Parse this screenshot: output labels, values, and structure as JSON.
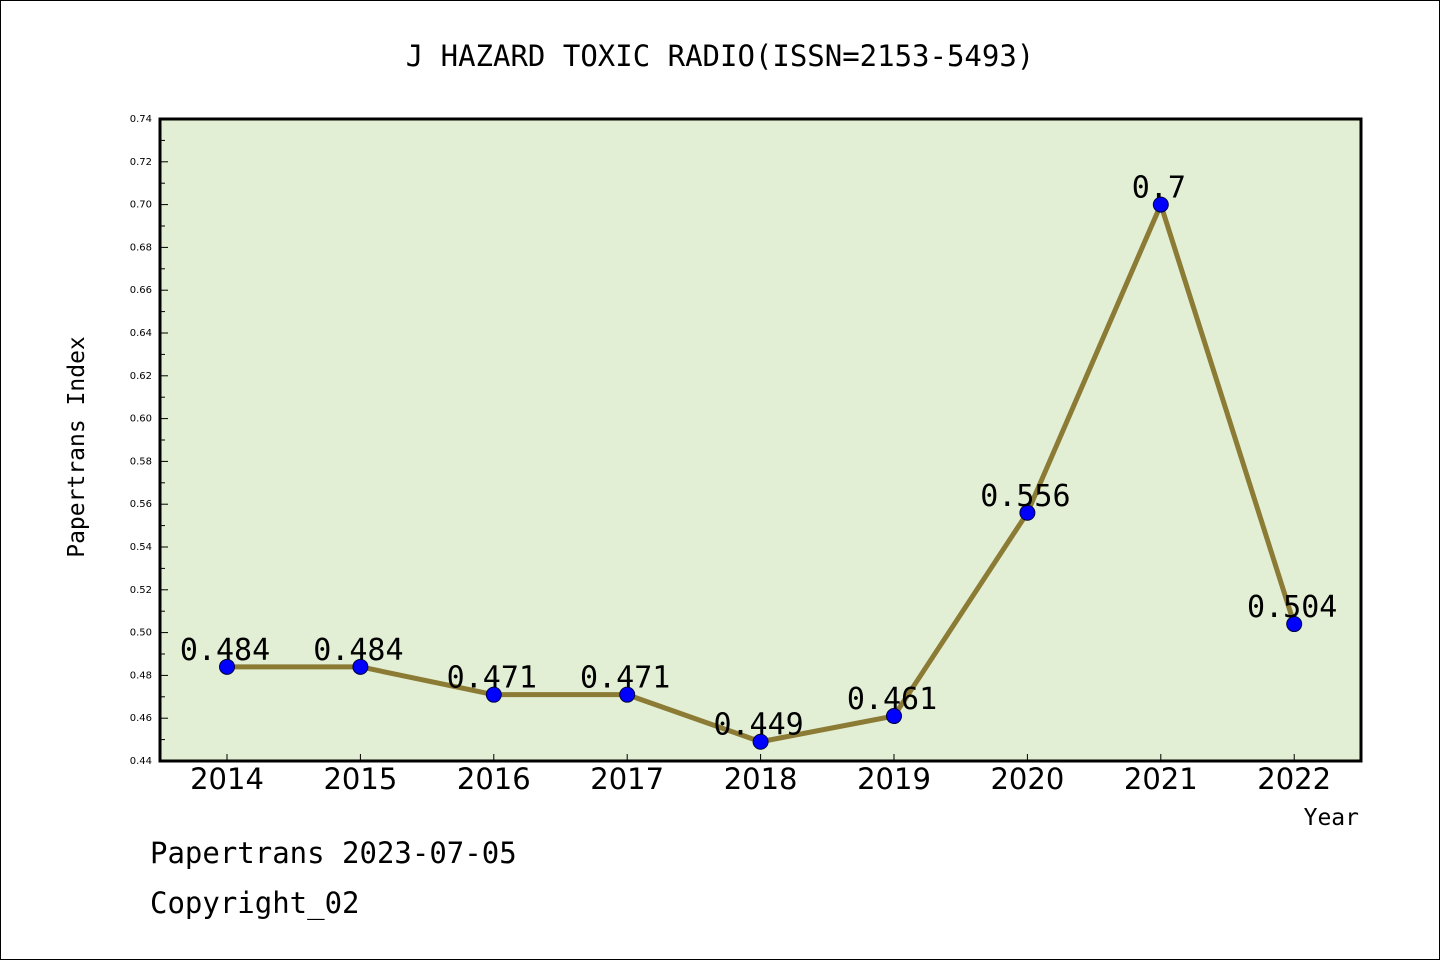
{
  "chart_data": {
    "type": "line",
    "title": "J HAZARD TOXIC RADIO(ISSN=2153-5493)",
    "xlabel": "Year",
    "ylabel": "Papertrans Index",
    "categories": [
      "2014",
      "2015",
      "2016",
      "2017",
      "2018",
      "2019",
      "2020",
      "2021",
      "2022"
    ],
    "series": [
      {
        "values": [
          0.484,
          0.484,
          0.471,
          0.471,
          0.449,
          0.461,
          0.556,
          0.7,
          0.504
        ],
        "labels": [
          "0.484",
          "0.484",
          "0.471",
          "0.471",
          "0.449",
          "0.461",
          "0.556",
          "0.7",
          "0.504"
        ]
      }
    ],
    "ylim": [
      0.44,
      0.74
    ],
    "yticks": [
      "0.44",
      "0.46",
      "0.48",
      "0.50",
      "0.52",
      "0.54",
      "0.56",
      "0.58",
      "0.60",
      "0.62",
      "0.64",
      "0.66",
      "0.68",
      "0.70",
      "0.72",
      "0.74"
    ],
    "grid": false,
    "legend": "none",
    "colors": {
      "plot_background": "#e2efd5",
      "line": "#8b7b34",
      "marker": "#0000ff"
    }
  },
  "footer": {
    "date_line": "Papertrans 2023-07-05",
    "copyright": "Copyright_02"
  }
}
